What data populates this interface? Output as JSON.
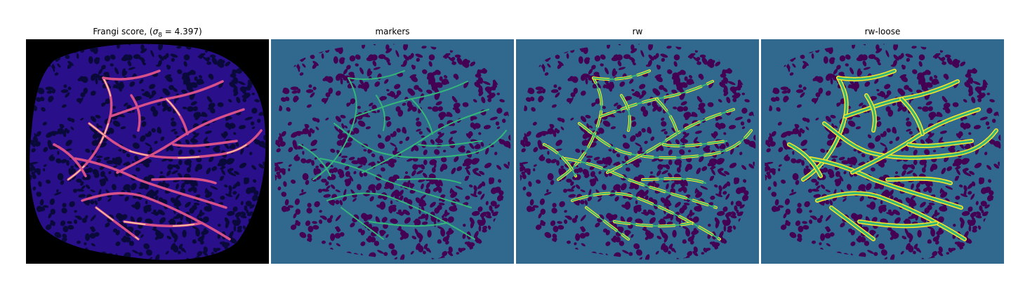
{
  "panels": [
    {
      "title_prefix": "Frangi score, (",
      "title_sigma": "σ",
      "title_sub": "8",
      "title_suffix": " = 4.397)",
      "colors": {
        "background": "#000000",
        "tissue": "#2a0f8a",
        "holes": "#0a0a3a",
        "vessel": "#d8508a",
        "vessel_hot": "#ffd8a0"
      }
    },
    {
      "title": "markers",
      "colors": {
        "background": "#31688e",
        "tissue": "#31688e",
        "holes": "#440154",
        "vessel": "#35b779"
      }
    },
    {
      "title": "rw",
      "colors": {
        "background": "#31688e",
        "tissue": "#31688e",
        "holes": "#440154",
        "vessel": "#35b779",
        "edge": "#fde725"
      }
    },
    {
      "title": "rw-loose",
      "colors": {
        "background": "#31688e",
        "tissue": "#31688e",
        "holes": "#440154",
        "vessel": "#35b779",
        "edge": "#fde725"
      }
    }
  ]
}
